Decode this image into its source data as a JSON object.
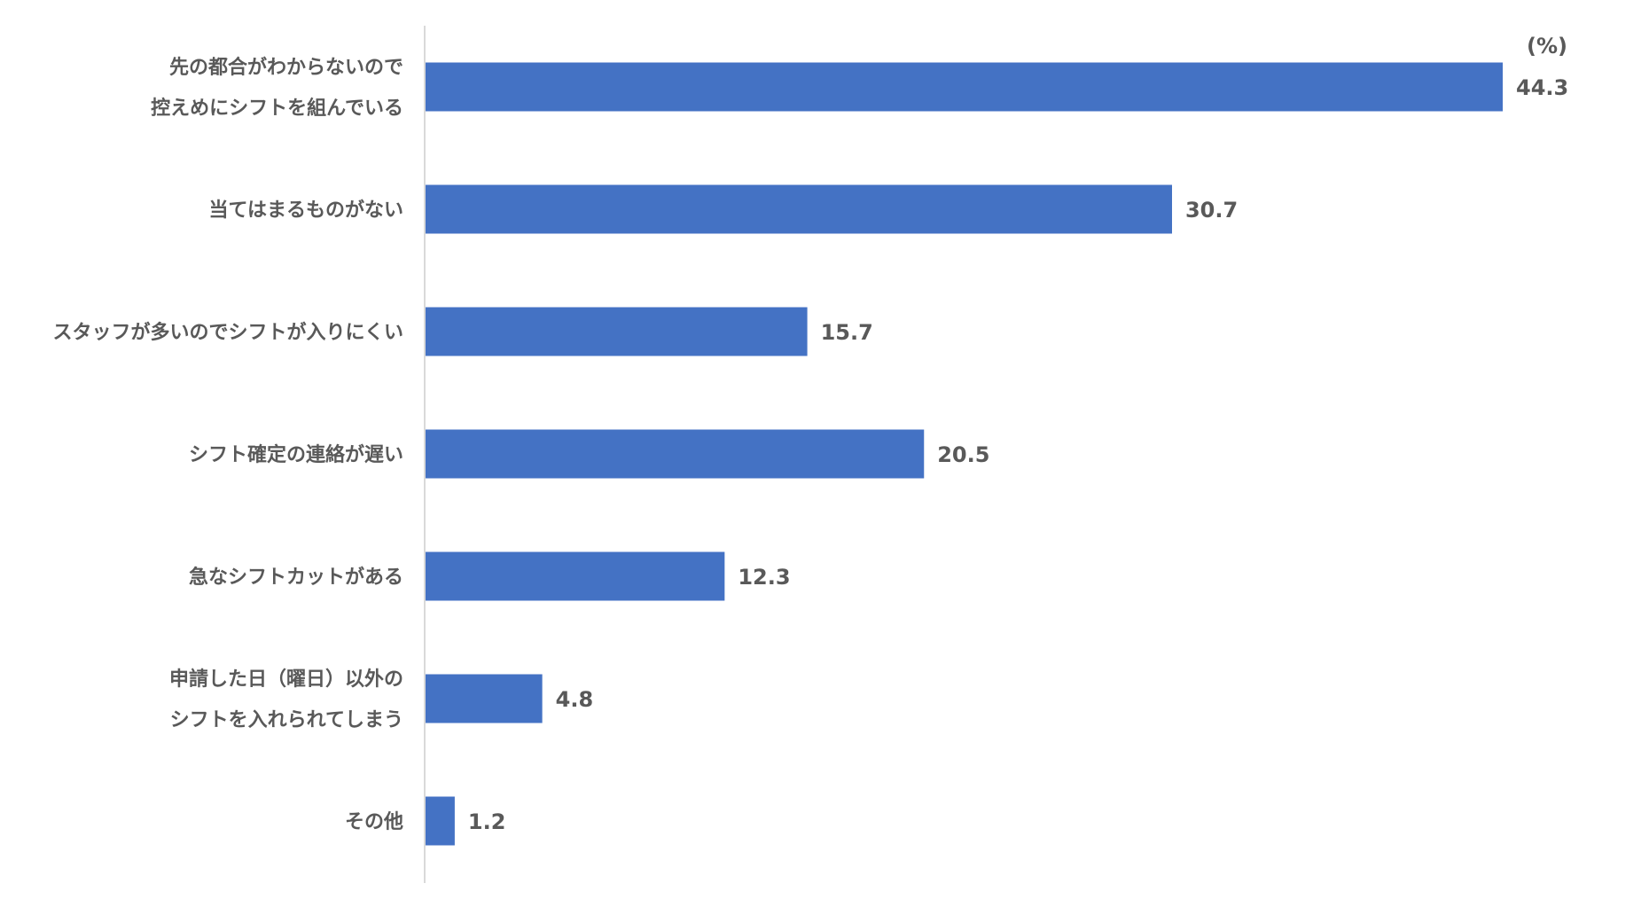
{
  "chart_data": {
    "type": "bar",
    "orientation": "horizontal",
    "unit_label": "(%)",
    "categories": [
      [
        "先の都合がわからないので",
        "控えめにシフトを組んでいる"
      ],
      [
        "当てはまるものがない"
      ],
      [
        "スタッフが多いのでシフトが入りにくい"
      ],
      [
        "シフト確定の連絡が遅い"
      ],
      [
        "急なシフトカットがある"
      ],
      [
        "申請した日（曜日）以外の",
        "シフトを入れられてしまう"
      ],
      [
        "その他"
      ]
    ],
    "values": [
      44.3,
      30.7,
      15.7,
      20.5,
      12.3,
      4.8,
      1.2
    ],
    "value_labels": [
      "44.3",
      "30.7",
      "15.7",
      "20.5",
      "12.3",
      "4.8",
      "1.2"
    ],
    "xlim": [
      0,
      44.3
    ],
    "grid": false,
    "bar_color": "#4472C4",
    "text_color": "#595959",
    "axis_color": "#D9D9D9"
  }
}
